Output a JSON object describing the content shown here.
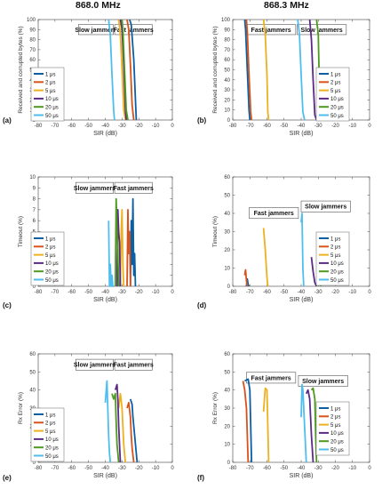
{
  "headers": {
    "left": "868.0 MHz",
    "right": "868.3 MHz"
  },
  "legend_labels": [
    "1 μs",
    "2 μs",
    "5 μs",
    "10 μs",
    "20 μs",
    "50 μs"
  ],
  "colors": [
    "#0b5fa5",
    "#d95319",
    "#edb120",
    "#5b2a86",
    "#4e9a1f",
    "#4dbeee"
  ],
  "chart_data": [
    {
      "panel": "(a)",
      "type": "line",
      "xlabel": "SIR (dB)",
      "ylabel": "Received and corrupted bytes (%)",
      "xlim": [
        -80,
        0
      ],
      "ylim": [
        0,
        100
      ],
      "xticks": [
        -80,
        -70,
        -60,
        -50,
        -40,
        -30,
        -20,
        -10,
        0
      ],
      "yticks": [
        0,
        10,
        20,
        30,
        40,
        50,
        60,
        70,
        80,
        90,
        100
      ],
      "boxes": [
        "Slow jammers",
        "Fast jammers"
      ],
      "series": [
        {
          "name": "1 μs",
          "x": [
            -25.5,
            -24.5,
            -23,
            -22,
            -21.5
          ],
          "y": [
            100,
            95,
            60,
            20,
            0
          ]
        },
        {
          "name": "2 μs",
          "x": [
            -27,
            -26,
            -25,
            -24,
            -23
          ],
          "y": [
            100,
            90,
            55,
            15,
            0
          ]
        },
        {
          "name": "5 μs",
          "x": [
            -32,
            -31,
            -30,
            -29,
            -28
          ],
          "y": [
            100,
            85,
            50,
            10,
            0
          ]
        },
        {
          "name": "10 μs",
          "x": [
            -31,
            -30,
            -29,
            -28,
            -27.5
          ],
          "y": [
            100,
            90,
            55,
            10,
            0
          ]
        },
        {
          "name": "20 μs",
          "x": [
            -30,
            -29.5,
            -28.5,
            -27.5,
            -26.5
          ],
          "y": [
            100,
            90,
            50,
            10,
            0
          ]
        },
        {
          "name": "50 μs",
          "x": [
            -38,
            -37,
            -36,
            -35,
            -34.5
          ],
          "y": [
            100,
            85,
            45,
            10,
            0
          ]
        }
      ]
    },
    {
      "panel": "(b)",
      "type": "line",
      "xlabel": "SIR (dB)",
      "ylabel": "Received and corrupted bytes (%)",
      "xlim": [
        -80,
        0
      ],
      "ylim": [
        0,
        100
      ],
      "xticks": [
        -80,
        -70,
        -60,
        -50,
        -40,
        -30,
        -20,
        -10,
        0
      ],
      "yticks": [
        0,
        10,
        20,
        30,
        40,
        50,
        60,
        70,
        80,
        90,
        100
      ],
      "boxes": [
        "Fast jammers",
        "Slow jammers"
      ],
      "series": [
        {
          "name": "1 μs",
          "x": [
            -73,
            -72.5,
            -71.5,
            -70.5,
            -70
          ],
          "y": [
            100,
            90,
            50,
            10,
            0
          ]
        },
        {
          "name": "2 μs",
          "x": [
            -72,
            -71.5,
            -70.5,
            -69.5,
            -69
          ],
          "y": [
            100,
            88,
            45,
            8,
            0
          ]
        },
        {
          "name": "5 μs",
          "x": [
            -62,
            -61,
            -60,
            -59.5,
            -59
          ],
          "y": [
            100,
            85,
            45,
            8,
            0
          ]
        },
        {
          "name": "10 μs",
          "x": [
            -35,
            -34,
            -33,
            -32,
            -31
          ],
          "y": [
            100,
            80,
            40,
            5,
            0
          ]
        },
        {
          "name": "20 μs",
          "x": [
            -31,
            -30,
            -29.5,
            -29,
            -28.5
          ],
          "y": [
            100,
            85,
            45,
            8,
            0
          ]
        },
        {
          "name": "50 μs",
          "x": [
            -42,
            -41,
            -40,
            -39,
            -38
          ],
          "y": [
            100,
            85,
            45,
            8,
            0
          ]
        }
      ]
    },
    {
      "panel": "(c)",
      "type": "line",
      "xlabel": "SIR (dB)",
      "ylabel": "Timeout (%)",
      "xlim": [
        -80,
        0
      ],
      "ylim": [
        0,
        10
      ],
      "xticks": [
        -80,
        -70,
        -60,
        -50,
        -40,
        -30,
        -20,
        -10,
        0
      ],
      "yticks": [
        0,
        1,
        2,
        3,
        4,
        5,
        6,
        7,
        8,
        9,
        10
      ],
      "boxes": [
        "Slow jammers",
        "Fast jammers"
      ],
      "series": [
        {
          "name": "1 μs",
          "x": [
            -25,
            -24.5,
            -24,
            -23.5,
            -23,
            -22.5,
            -22
          ],
          "y": [
            0,
            6,
            2,
            8,
            1,
            3,
            0
          ]
        },
        {
          "name": "2 μs",
          "x": [
            -27,
            -26.5,
            -26,
            -25.5,
            -25
          ],
          "y": [
            0,
            7,
            3,
            5,
            0
          ]
        },
        {
          "name": "5 μs",
          "x": [
            -31,
            -30.5,
            -30,
            -29.5,
            -29
          ],
          "y": [
            0,
            5,
            7,
            2,
            0
          ]
        },
        {
          "name": "10 μs",
          "x": [
            -33,
            -32.5,
            -32,
            -31.5,
            -31
          ],
          "y": [
            0,
            7,
            5,
            4,
            0
          ]
        },
        {
          "name": "20 μs",
          "x": [
            -34,
            -33.5,
            -33,
            -32.5,
            -32
          ],
          "y": [
            0,
            8,
            5,
            3,
            0
          ]
        },
        {
          "name": "50 μs",
          "x": [
            -38,
            -37.5,
            -37,
            -36.5,
            -36,
            -35.5,
            -35
          ],
          "y": [
            6,
            0,
            2,
            0,
            1,
            0,
            0
          ]
        }
      ]
    },
    {
      "panel": "(d)",
      "type": "line",
      "xlabel": "SIR (dB)",
      "ylabel": "Timeout (%)",
      "xlim": [
        -80,
        0
      ],
      "ylim": [
        0,
        60
      ],
      "xticks": [
        -80,
        -70,
        -60,
        -50,
        -40,
        -30,
        -20,
        -10,
        0
      ],
      "yticks": [
        0,
        10,
        20,
        30,
        40,
        50,
        60
      ],
      "boxes": [
        "Fast jammers",
        "Slow jammers"
      ],
      "series": [
        {
          "name": "1 μs",
          "x": [
            -72,
            -71.5,
            -71,
            -70.5
          ],
          "y": [
            0,
            4,
            1,
            0
          ]
        },
        {
          "name": "2 μs",
          "x": [
            -73,
            -72.5,
            -72,
            -71.5
          ],
          "y": [
            6,
            9,
            3,
            0
          ]
        },
        {
          "name": "5 μs",
          "x": [
            -62,
            -61,
            -60,
            -59.5
          ],
          "y": [
            32,
            20,
            5,
            0
          ]
        },
        {
          "name": "10 μs",
          "x": [
            -34,
            -33,
            -32,
            -31
          ],
          "y": [
            16,
            8,
            2,
            0
          ]
        },
        {
          "name": "20 μs",
          "x": [
            -30,
            -29.5,
            -29,
            -28.5
          ],
          "y": [
            16,
            8,
            2,
            0
          ]
        },
        {
          "name": "50 μs",
          "x": [
            -40,
            -39.5,
            -39,
            -38.5
          ],
          "y": [
            35,
            40,
            10,
            0
          ]
        }
      ]
    },
    {
      "panel": "(e)",
      "type": "line",
      "xlabel": "SIR (dB)",
      "ylabel": "Rx Error (%)",
      "xlim": [
        -80,
        0
      ],
      "ylim": [
        0,
        60
      ],
      "xticks": [
        -80,
        -70,
        -60,
        -50,
        -40,
        -30,
        -20,
        -10,
        0
      ],
      "yticks": [
        0,
        10,
        20,
        30,
        40,
        50,
        60
      ],
      "boxes": [
        "Slow jammers",
        "Fast jammers"
      ],
      "series": [
        {
          "name": "1 μs",
          "x": [
            -25,
            -24,
            -23.5,
            -23,
            -22,
            -21
          ],
          "y": [
            35,
            32,
            25,
            20,
            10,
            0
          ]
        },
        {
          "name": "2 μs",
          "x": [
            -27,
            -26,
            -25,
            -24.5,
            -24,
            -23
          ],
          "y": [
            30,
            33,
            25,
            15,
            8,
            0
          ]
        },
        {
          "name": "5 μs",
          "x": [
            -32,
            -31,
            -30,
            -29.5,
            -29,
            -28
          ],
          "y": [
            30,
            38,
            30,
            20,
            10,
            0
          ]
        },
        {
          "name": "10 μs",
          "x": [
            -34,
            -33,
            -32.5,
            -32,
            -31.5,
            -31
          ],
          "y": [
            40,
            43,
            35,
            20,
            10,
            0
          ]
        },
        {
          "name": "20 μs",
          "x": [
            -36,
            -35,
            -34,
            -33.5,
            -33,
            -32
          ],
          "y": [
            38,
            35,
            38,
            22,
            10,
            0
          ]
        },
        {
          "name": "50 μs",
          "x": [
            -40,
            -39,
            -38.5,
            -38,
            -37.5,
            -37
          ],
          "y": [
            33,
            45,
            30,
            15,
            5,
            0
          ]
        }
      ]
    },
    {
      "panel": "(f)",
      "type": "line",
      "xlabel": "SIR (dB)",
      "ylabel": "Rx Error (%)",
      "xlim": [
        -80,
        0
      ],
      "ylim": [
        0,
        60
      ],
      "xticks": [
        -80,
        -70,
        -60,
        -50,
        -40,
        -30,
        -20,
        -10,
        0
      ],
      "yticks": [
        0,
        10,
        20,
        30,
        40,
        50,
        60
      ],
      "boxes": [
        "Fast jammers",
        "Slow jammers"
      ],
      "series": [
        {
          "name": "1 μs",
          "x": [
            -73,
            -71,
            -70,
            -69.5,
            -69
          ],
          "y": [
            45,
            46,
            40,
            20,
            0
          ]
        },
        {
          "name": "2 μs",
          "x": [
            -74,
            -73,
            -72,
            -71.5,
            -71
          ],
          "y": [
            45,
            40,
            30,
            15,
            0
          ]
        },
        {
          "name": "5 μs",
          "x": [
            -62,
            -61,
            -60,
            -59.5,
            -59
          ],
          "y": [
            28,
            41,
            40,
            20,
            0
          ]
        },
        {
          "name": "10 μs",
          "x": [
            -37,
            -36,
            -35,
            -34,
            -33
          ],
          "y": [
            38,
            40,
            35,
            15,
            0
          ]
        },
        {
          "name": "20 μs",
          "x": [
            -34,
            -33,
            -32,
            -31.5,
            -31
          ],
          "y": [
            40,
            41,
            35,
            15,
            0
          ]
        },
        {
          "name": "50 μs",
          "x": [
            -40,
            -39.5,
            -39,
            -38,
            -37
          ],
          "y": [
            25,
            43,
            40,
            20,
            0
          ]
        }
      ]
    }
  ]
}
